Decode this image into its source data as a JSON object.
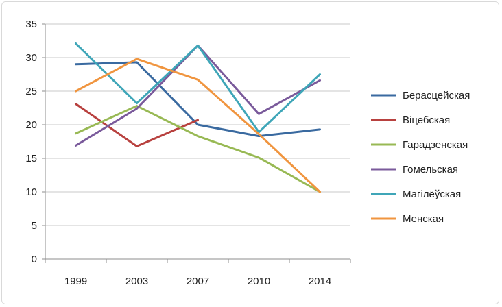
{
  "chart_data": {
    "type": "line",
    "categories": [
      "1999",
      "2003",
      "2007",
      "2010",
      "2014"
    ],
    "ylim": [
      0,
      35
    ],
    "yticks": [
      0,
      5,
      10,
      15,
      20,
      25,
      30,
      35
    ],
    "grid": "horizontal",
    "legend_position": "right",
    "series": [
      {
        "name": "Берасцейская",
        "color": "#3a6aa0",
        "values": [
          29.0,
          29.3,
          20.0,
          18.3,
          19.3
        ]
      },
      {
        "name": "Віцебская",
        "color": "#b8413f",
        "values": [
          23.1,
          16.8,
          20.7,
          null,
          null
        ]
      },
      {
        "name": "Гарадзенская",
        "color": "#98b954",
        "values": [
          18.7,
          22.8,
          18.3,
          15.1,
          10.0
        ]
      },
      {
        "name": "Гомельская",
        "color": "#7a5a9b",
        "values": [
          16.9,
          22.4,
          31.8,
          21.6,
          26.6
        ]
      },
      {
        "name": "Магілёўская",
        "color": "#3fa6b8",
        "values": [
          32.1,
          23.2,
          31.8,
          18.9,
          27.5
        ]
      },
      {
        "name": "Менская",
        "color": "#f0953f",
        "values": [
          25.0,
          29.8,
          26.7,
          18.6,
          10.0
        ]
      }
    ]
  }
}
